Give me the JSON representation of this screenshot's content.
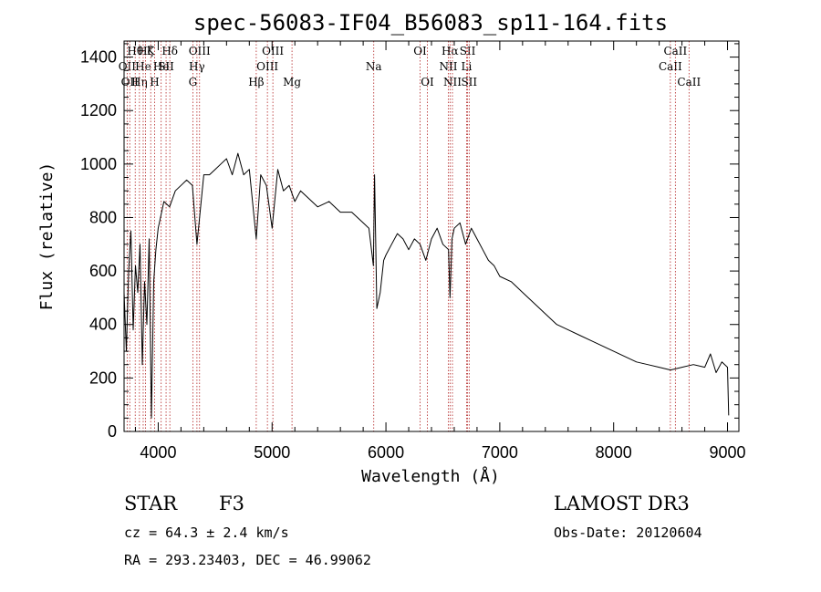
{
  "chart_data": {
    "type": "line",
    "title": "spec-56083-IF04_B56083_sp11-164.fits",
    "xlabel": "Wavelength (Å)",
    "ylabel": "Flux (relative)",
    "xlim": [
      3700,
      9100
    ],
    "ylim": [
      0,
      1460
    ],
    "x_ticks": [
      4000,
      5000,
      6000,
      7000,
      8000,
      9000
    ],
    "y_ticks": [
      0,
      200,
      400,
      600,
      800,
      1000,
      1200,
      1400
    ],
    "grid": false,
    "series": [
      {
        "name": "flux",
        "color": "#000000",
        "x": [
          3700,
          3720,
          3740,
          3760,
          3780,
          3800,
          3820,
          3840,
          3860,
          3880,
          3900,
          3920,
          3940,
          3960,
          3980,
          4000,
          4050,
          4100,
          4150,
          4200,
          4250,
          4300,
          4340,
          4400,
          4450,
          4500,
          4550,
          4600,
          4650,
          4700,
          4750,
          4800,
          4861,
          4900,
          4950,
          5000,
          5050,
          5100,
          5150,
          5200,
          5250,
          5300,
          5400,
          5500,
          5600,
          5700,
          5800,
          5850,
          5890,
          5900,
          5920,
          5950,
          5980,
          6000,
          6050,
          6100,
          6150,
          6200,
          6250,
          6300,
          6350,
          6400,
          6450,
          6500,
          6550,
          6563,
          6580,
          6600,
          6650,
          6700,
          6750,
          6800,
          6850,
          6900,
          6950,
          7000,
          7100,
          7200,
          7300,
          7400,
          7500,
          7600,
          7700,
          7800,
          7900,
          8000,
          8100,
          8200,
          8300,
          8400,
          8500,
          8600,
          8700,
          8800,
          8850,
          8900,
          8950,
          9000,
          9010
        ],
        "y": [
          520,
          300,
          600,
          750,
          380,
          620,
          520,
          700,
          250,
          560,
          400,
          720,
          50,
          560,
          680,
          760,
          860,
          840,
          900,
          920,
          940,
          920,
          700,
          960,
          960,
          980,
          1000,
          1020,
          960,
          1040,
          960,
          980,
          720,
          960,
          920,
          760,
          980,
          900,
          920,
          860,
          900,
          880,
          840,
          860,
          820,
          820,
          780,
          760,
          620,
          960,
          460,
          520,
          640,
          660,
          700,
          740,
          720,
          680,
          720,
          700,
          640,
          720,
          760,
          700,
          680,
          500,
          720,
          760,
          780,
          700,
          760,
          720,
          680,
          640,
          620,
          580,
          560,
          520,
          480,
          440,
          400,
          380,
          360,
          340,
          320,
          300,
          280,
          260,
          250,
          240,
          230,
          240,
          250,
          240,
          290,
          220,
          260,
          240,
          60
        ]
      }
    ],
    "line_markers": [
      {
        "wavelength": 3727,
        "label": "OII",
        "row": 2
      },
      {
        "wavelength": 3750,
        "label": "OII",
        "row": 3
      },
      {
        "wavelength": 3798,
        "label": "Hθ",
        "row": 1
      },
      {
        "wavelength": 3835,
        "label": "Hη",
        "row": 3
      },
      {
        "wavelength": 3868,
        "label": "He",
        "row": 2
      },
      {
        "wavelength": 3889,
        "label": "Hζ",
        "row": 1
      },
      {
        "wavelength": 3934,
        "label": "K",
        "row": 1
      },
      {
        "wavelength": 3968,
        "label": "H",
        "row": 3
      },
      {
        "wavelength": 4026,
        "label": "He",
        "row": 2
      },
      {
        "wavelength": 4069,
        "label": "SII",
        "row": 2
      },
      {
        "wavelength": 4102,
        "label": "Hδ",
        "row": 1
      },
      {
        "wavelength": 4304,
        "label": "G",
        "row": 3
      },
      {
        "wavelength": 4340,
        "label": "Hγ",
        "row": 2
      },
      {
        "wavelength": 4363,
        "label": "OIII",
        "row": 1
      },
      {
        "wavelength": 4861,
        "label": "Hβ",
        "row": 3
      },
      {
        "wavelength": 4959,
        "label": "OIII",
        "row": 2
      },
      {
        "wavelength": 5007,
        "label": "OIII",
        "row": 1
      },
      {
        "wavelength": 5175,
        "label": "Mg",
        "row": 3
      },
      {
        "wavelength": 5893,
        "label": "Na",
        "row": 2
      },
      {
        "wavelength": 6300,
        "label": "OI",
        "row": 1
      },
      {
        "wavelength": 6364,
        "label": "OI",
        "row": 3
      },
      {
        "wavelength": 6548,
        "label": "NII",
        "row": 2
      },
      {
        "wavelength": 6563,
        "label": "Hα",
        "row": 1
      },
      {
        "wavelength": 6584,
        "label": "NII",
        "row": 3
      },
      {
        "wavelength": 6708,
        "label": "Li",
        "row": 2
      },
      {
        "wavelength": 6717,
        "label": "SII",
        "row": 1
      },
      {
        "wavelength": 6731,
        "label": "SII",
        "row": 3
      },
      {
        "wavelength": 8498,
        "label": "CaII",
        "row": 2
      },
      {
        "wavelength": 8542,
        "label": "CaII",
        "row": 1
      },
      {
        "wavelength": 8662,
        "label": "CaII",
        "row": 3
      }
    ]
  },
  "info": {
    "class": "STAR",
    "subclass": "F3",
    "survey": "LAMOST DR3",
    "cz": "cz = 64.3 ± 2.4 km/s",
    "obs_date": "Obs-Date: 20120604",
    "coords": "RA = 293.23403, DEC =  46.99062"
  },
  "colors": {
    "marker": "#b22222",
    "axis": "#000000"
  }
}
